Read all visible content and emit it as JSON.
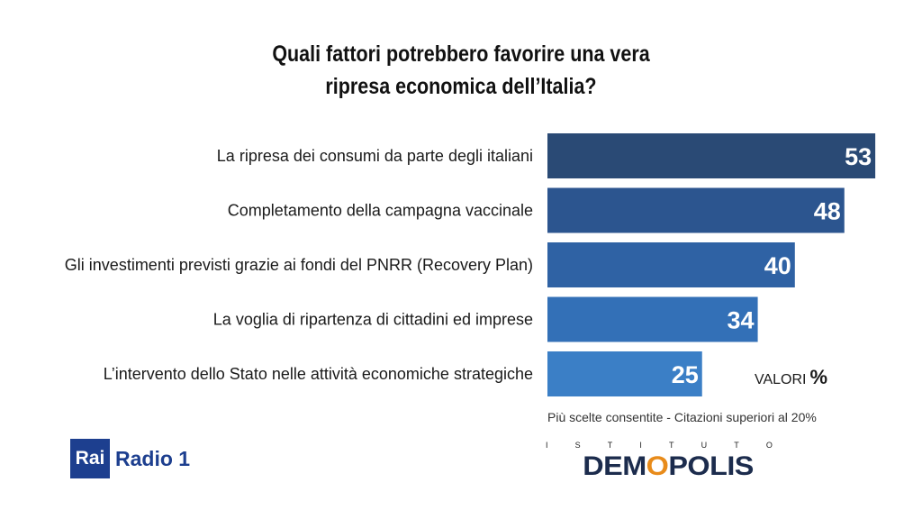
{
  "title_lines": [
    "Quali fattori potrebbero favorire una vera",
    "ripresa economica dell’Italia?"
  ],
  "chart_data": {
    "type": "bar",
    "orientation": "horizontal",
    "title": "Quali fattori potrebbero favorire una vera ripresa economica dell’Italia?",
    "categories": [
      "La ripresa dei consumi da parte degli italiani",
      "Completamento della campagna vaccinale",
      "Gli investimenti previsti grazie ai fondi del PNRR (Recovery Plan)",
      "La voglia di ripartenza di cittadini ed imprese",
      "L’intervento dello Stato nelle attività economiche strategiche"
    ],
    "values": [
      53,
      48,
      40,
      34,
      25
    ],
    "bar_colors": [
      "#2a4a75",
      "#2c558f",
      "#2f62a4",
      "#3370b7",
      "#3b7fc6"
    ],
    "value_labels": true,
    "unit_label": "VALORI",
    "unit_symbol": "%"
  },
  "note": "Più scelte consentite - Citazioni superiori al 20%",
  "logos": {
    "rai_box": "Rai",
    "rai_text": "Radio 1",
    "demopolis_top": [
      "I",
      "S",
      "T",
      "I",
      "T",
      "U",
      "T",
      "O"
    ],
    "demopolis_pre": "DEM",
    "demopolis_o": "O",
    "demopolis_post": "POLIS"
  }
}
